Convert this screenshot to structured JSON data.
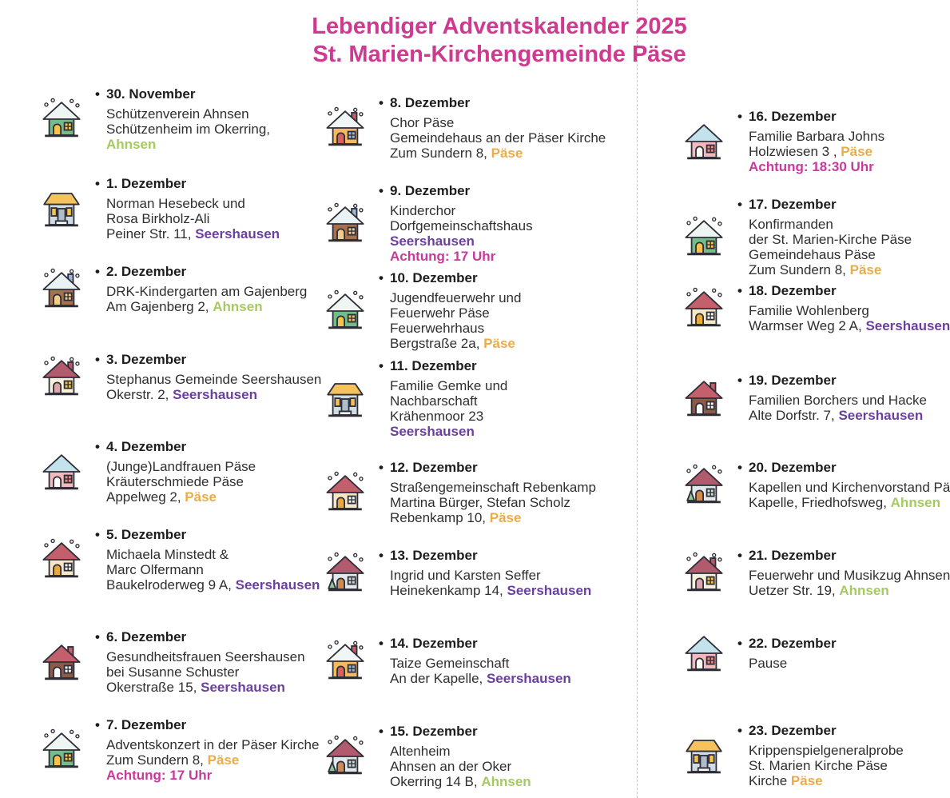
{
  "page": {
    "title_line1": "Lebendiger Adventskalender 2025",
    "title_line2": "St. Marien-Kirchengemeinde Päse",
    "bullet": "•"
  },
  "colors": {
    "title": "#ce3a90",
    "text": "#2f2f2f",
    "date": "#1d1d1d",
    "ahnsen": "#a6ca60",
    "seershausen": "#6b3fa0",
    "paese": "#eaac49",
    "achtung": "#c73a9c",
    "divider": "#c9c9c9",
    "outline": "#2e2e38"
  },
  "icon_variants": {
    "green": {
      "type": "gable",
      "body": "#72bd8a",
      "roof": "#eef5f3",
      "door": "#f6c44c",
      "win": "#f6c44c",
      "snow": true
    },
    "blueflat": {
      "type": "flat",
      "body": "#cfdce5",
      "roof": "#f6c25b",
      "door": "#aebdc9",
      "win": "#f6c44c"
    },
    "cabin": {
      "type": "gable",
      "body": "#a8714e",
      "roof": "#e9f2f4",
      "door": "#f0cd8d",
      "win": "#f0cd8d",
      "snow": true,
      "chim": "#9db8d9"
    },
    "creamred": {
      "type": "gable",
      "body": "#f8f1dd",
      "roof": "#b25a6e",
      "door": "#d9a7ad",
      "win": "#f6c44c",
      "chim": "#b25a6e",
      "snow": true
    },
    "pinkblue": {
      "type": "gable",
      "body": "#f3b9bd",
      "roof": "#c4e2ec",
      "door": "#fdfbf6",
      "win": "#e98a8a"
    },
    "tanround": {
      "type": "gable",
      "body": "#f7e7c9",
      "roof": "#c4606b",
      "door": "#e8a93f",
      "win": "#ffffff",
      "snow": true
    },
    "brownred": {
      "type": "gable",
      "body": "#8d5b45",
      "roof": "#c4606b",
      "door": "#ffffff",
      "win": "#ffffff",
      "chim": "#c4606b"
    },
    "orangedoor": {
      "type": "gable",
      "body": "#f3ba60",
      "roof": "#f0f6f6",
      "door": "#d95f62",
      "win": "#9db8d9",
      "snow": true,
      "chim": "#c4606b"
    },
    "graytree": {
      "type": "gable",
      "body": "#e2e8ec",
      "roof": "#b25a6e",
      "door": "#d08a4f",
      "win": "#cfe0d0",
      "tree": true,
      "snow": true
    }
  },
  "columns": [
    {
      "entries": [
        {
          "date": "30. November",
          "icon": "green",
          "lines": [
            [
              {
                "t": "Schützenverein Ahnsen",
                "s": "plain"
              }
            ],
            [
              {
                "t": "Schützenheim im Okerring,",
                "s": "plain"
              }
            ],
            [
              {
                "t": "Ahnsen",
                "s": "ahnsen"
              }
            ]
          ]
        },
        {
          "date": "1. Dezember",
          "icon": "blueflat",
          "lines": [
            [
              {
                "t": "Norman Hesebeck und",
                "s": "plain"
              }
            ],
            [
              {
                "t": "Rosa Birkholz-Ali",
                "s": "plain"
              }
            ],
            [
              {
                "t": "Peiner Str. 11, ",
                "s": "plain"
              },
              {
                "t": "Seershausen",
                "s": "seershausen"
              }
            ]
          ]
        },
        {
          "date": "2. Dezember",
          "icon": "cabin",
          "lines": [
            [
              {
                "t": "DRK-Kindergarten am Gajenberg",
                "s": "plain"
              }
            ],
            [
              {
                "t": "Am Gajenberg 2, ",
                "s": "plain"
              },
              {
                "t": "Ahnsen",
                "s": "ahnsen"
              }
            ]
          ]
        },
        {
          "date": "3. Dezember",
          "icon": "creamred",
          "lines": [
            [
              {
                "t": "Stephanus Gemeinde Seershausen",
                "s": "plain"
              }
            ],
            [
              {
                "t": "Okerstr. 2, ",
                "s": "plain"
              },
              {
                "t": "Seershausen",
                "s": "seershausen"
              }
            ]
          ]
        },
        {
          "date": "4. Dezember",
          "icon": "pinkblue",
          "lines": [
            [
              {
                "t": "(Junge)Landfrauen Päse",
                "s": "plain"
              }
            ],
            [
              {
                "t": "Kräuterschmiede Päse",
                "s": "plain"
              }
            ],
            [
              {
                "t": "Appelweg 2, ",
                "s": "plain"
              },
              {
                "t": "Päse",
                "s": "paese"
              }
            ]
          ]
        },
        {
          "date": "5. Dezember",
          "icon": "tanround",
          "lines": [
            [
              {
                "t": "Michaela Minstedt &",
                "s": "plain"
              }
            ],
            [
              {
                "t": "Marc Olfermann",
                "s": "plain"
              }
            ],
            [
              {
                "t": "Baukelroderweg 9 A, ",
                "s": "plain"
              },
              {
                "t": "Seershausen",
                "s": "seershausen"
              }
            ]
          ]
        },
        {
          "date": "6. Dezember",
          "icon": "brownred",
          "lines": [
            [
              {
                "t": "Gesundheitsfrauen Seershausen",
                "s": "plain"
              }
            ],
            [
              {
                "t": "bei Susanne Schuster",
                "s": "plain"
              }
            ],
            [
              {
                "t": "Okerstraße 15, ",
                "s": "plain"
              },
              {
                "t": "Seershausen",
                "s": "seershausen"
              }
            ]
          ]
        },
        {
          "date": "7. Dezember",
          "icon": "green",
          "lines": [
            [
              {
                "t": "Adventskonzert in der Päser Kirche",
                "s": "plain"
              }
            ],
            [
              {
                "t": "Zum Sundern 8, ",
                "s": "plain"
              },
              {
                "t": "Päse",
                "s": "paese"
              }
            ],
            [
              {
                "t": "Achtung: 17 Uhr",
                "s": "achtung"
              }
            ]
          ]
        }
      ]
    },
    {
      "entries": [
        {
          "date": "8. Dezember",
          "icon": "orangedoor",
          "lines": [
            [
              {
                "t": "Chor Päse",
                "s": "plain"
              }
            ],
            [
              {
                "t": "Gemeindehaus an der Päser Kirche",
                "s": "plain"
              }
            ],
            [
              {
                "t": "Zum Sundern 8, ",
                "s": "plain"
              },
              {
                "t": "Päse",
                "s": "paese"
              }
            ]
          ]
        },
        {
          "date": "9. Dezember",
          "icon": "cabin",
          "lines": [
            [
              {
                "t": "Kinderchor",
                "s": "plain"
              }
            ],
            [
              {
                "t": "Dorfgemeinschaftshaus",
                "s": "plain"
              }
            ],
            [
              {
                "t": "Seershausen",
                "s": "seershausen"
              }
            ],
            [
              {
                "t": "Achtung: 17 Uhr",
                "s": "achtung"
              }
            ]
          ]
        },
        {
          "date": "10. Dezember",
          "icon": "green",
          "lines": [
            [
              {
                "t": "Jugendfeuerwehr und",
                "s": "plain"
              }
            ],
            [
              {
                "t": "Feuerwehr Päse",
                "s": "plain"
              }
            ],
            [
              {
                "t": "Feuerwehrhaus",
                "s": "plain"
              }
            ],
            [
              {
                "t": "Bergstraße 2a, ",
                "s": "plain"
              },
              {
                "t": "Päse",
                "s": "paese"
              }
            ]
          ]
        },
        {
          "date": "11. Dezember",
          "icon": "blueflat",
          "lines": [
            [
              {
                "t": "Familie Gemke und",
                "s": "plain"
              }
            ],
            [
              {
                "t": "Nachbarschaft",
                "s": "plain"
              }
            ],
            [
              {
                "t": "Krähenmoor 23",
                "s": "plain"
              }
            ],
            [
              {
                "t": "Seershausen",
                "s": "seershausen"
              }
            ]
          ]
        },
        {
          "date": "12. Dezember",
          "icon": "tanround",
          "lines": [
            [
              {
                "t": "Straßengemeinschaft Rebenkamp",
                "s": "plain"
              }
            ],
            [
              {
                "t": "Martina Bürger, Stefan Scholz",
                "s": "plain"
              }
            ],
            [
              {
                "t": "Rebenkamp 10, ",
                "s": "plain"
              },
              {
                "t": "Päse",
                "s": "paese"
              }
            ]
          ]
        },
        {
          "date": "13. Dezember",
          "icon": "graytree",
          "lines": [
            [
              {
                "t": "Ingrid und Karsten Seffer",
                "s": "plain"
              }
            ],
            [
              {
                "t": "Heinekenkamp 14, ",
                "s": "plain"
              },
              {
                "t": "Seershausen",
                "s": "seershausen"
              }
            ]
          ]
        },
        {
          "date": "14. Dezember",
          "icon": "orangedoor",
          "lines": [
            [
              {
                "t": "Taize Gemeinschaft",
                "s": "plain"
              }
            ],
            [
              {
                "t": "An der Kapelle, ",
                "s": "plain"
              },
              {
                "t": "Seershausen",
                "s": "seershausen"
              }
            ]
          ]
        },
        {
          "date": "15. Dezember",
          "icon": "graytree",
          "lines": [
            [
              {
                "t": "Altenheim",
                "s": "plain"
              }
            ],
            [
              {
                "t": "Ahnsen an der Oker",
                "s": "plain"
              }
            ],
            [
              {
                "t": "Okerring 14 B, ",
                "s": "plain"
              },
              {
                "t": "Ahnsen",
                "s": "ahnsen"
              }
            ]
          ]
        }
      ]
    },
    {
      "entries": [
        {
          "date": "16. Dezember",
          "icon": "pinkblue",
          "lines": [
            [
              {
                "t": "Familie Barbara Johns",
                "s": "plain"
              }
            ],
            [
              {
                "t": "Holzwiesen 3 , ",
                "s": "plain"
              },
              {
                "t": "Päse",
                "s": "paese"
              }
            ],
            [
              {
                "t": "Achtung: 18:30 Uhr",
                "s": "achtung"
              }
            ]
          ]
        },
        {
          "date": "17. Dezember",
          "icon": "green",
          "lines": [
            [
              {
                "t": "Konfirmanden",
                "s": "plain"
              }
            ],
            [
              {
                "t": "der St. Marien-Kirche Päse",
                "s": "plain"
              }
            ],
            [
              {
                "t": "Gemeindehaus Päse",
                "s": "plain"
              }
            ],
            [
              {
                "t": "Zum Sundern 8, ",
                "s": "plain"
              },
              {
                "t": "Päse",
                "s": "paese"
              }
            ]
          ]
        },
        {
          "date": "18. Dezember",
          "icon": "tanround",
          "lines": [
            [
              {
                "t": "Familie Wohlenberg",
                "s": "plain"
              }
            ],
            [
              {
                "t": "Warmser Weg 2 A, ",
                "s": "plain"
              },
              {
                "t": "Seershausen",
                "s": "seershausen"
              }
            ]
          ]
        },
        {
          "date": "19. Dezember",
          "icon": "brownred",
          "lines": [
            [
              {
                "t": "Familien Borchers und Hacke",
                "s": "plain"
              }
            ],
            [
              {
                "t": "Alte Dorfstr. 7, ",
                "s": "plain"
              },
              {
                "t": "Seershausen",
                "s": "seershausen"
              }
            ]
          ]
        },
        {
          "date": "20. Dezember",
          "icon": "graytree",
          "lines": [
            [
              {
                "t": "Kapellen und Kirchenvorstand Päse",
                "s": "plain"
              }
            ],
            [
              {
                "t": "Kapelle, Friedhofsweg, ",
                "s": "plain"
              },
              {
                "t": "Ahnsen",
                "s": "ahnsen"
              }
            ]
          ]
        },
        {
          "date": "21. Dezember",
          "icon": "creamred",
          "lines": [
            [
              {
                "t": "Feuerwehr und Musikzug Ahnsen",
                "s": "plain"
              }
            ],
            [
              {
                "t": "Uetzer Str. 19, ",
                "s": "plain"
              },
              {
                "t": "Ahnsen",
                "s": "ahnsen"
              }
            ]
          ]
        },
        {
          "date": "22. Dezember",
          "icon": "pinkblue",
          "lines": [
            [
              {
                "t": "Pause",
                "s": "plain"
              }
            ]
          ]
        },
        {
          "date": "23. Dezember",
          "icon": "blueflat",
          "lines": [
            [
              {
                "t": "Krippenspielgeneralprobe",
                "s": "plain"
              }
            ],
            [
              {
                "t": "St. Marien Kirche Päse",
                "s": "plain"
              }
            ],
            [
              {
                "t": "Kirche ",
                "s": "plain"
              },
              {
                "t": "Päse",
                "s": "paese"
              }
            ]
          ]
        }
      ]
    }
  ]
}
